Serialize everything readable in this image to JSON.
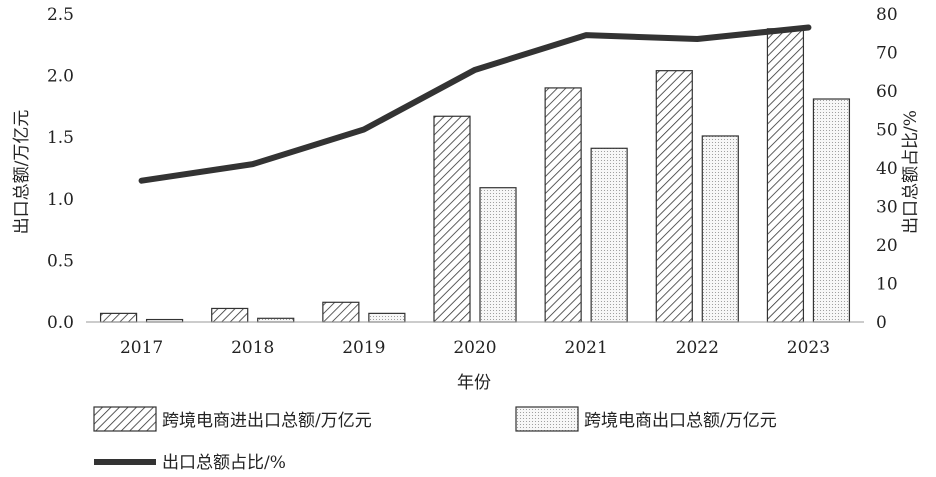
{
  "chart_data": {
    "type": "bar",
    "categories": [
      "2017",
      "2018",
      "2019",
      "2020",
      "2021",
      "2022",
      "2023"
    ],
    "xlabel": "年份",
    "ylabel_left": "出口总额/万亿元",
    "ylabel_right": "出口总额占比/%",
    "ylim_left": [
      0,
      2.5
    ],
    "yticks_left": [
      "0.0",
      "0.5",
      "1.0",
      "1.5",
      "2.0",
      "2.5"
    ],
    "ylim_right": [
      0,
      80
    ],
    "yticks_right": [
      "0",
      "10",
      "20",
      "30",
      "40",
      "50",
      "60",
      "70",
      "80"
    ],
    "series": [
      {
        "name": "跨境电商进出口总额/万亿元",
        "type": "bar",
        "axis": "left",
        "pattern": "hatch",
        "values": [
          0.07,
          0.11,
          0.16,
          1.67,
          1.9,
          2.04,
          2.38
        ]
      },
      {
        "name": "跨境电商出口总额/万亿元",
        "type": "bar",
        "axis": "left",
        "pattern": "dots",
        "values": [
          0.02,
          0.03,
          0.07,
          1.09,
          1.41,
          1.51,
          1.81
        ]
      },
      {
        "name": "出口总额占比/%",
        "type": "line",
        "axis": "right",
        "values": [
          36.7,
          41,
          50,
          65.5,
          74.5,
          73.5,
          76.5
        ]
      }
    ],
    "grid": false,
    "legend_position": "bottom"
  }
}
